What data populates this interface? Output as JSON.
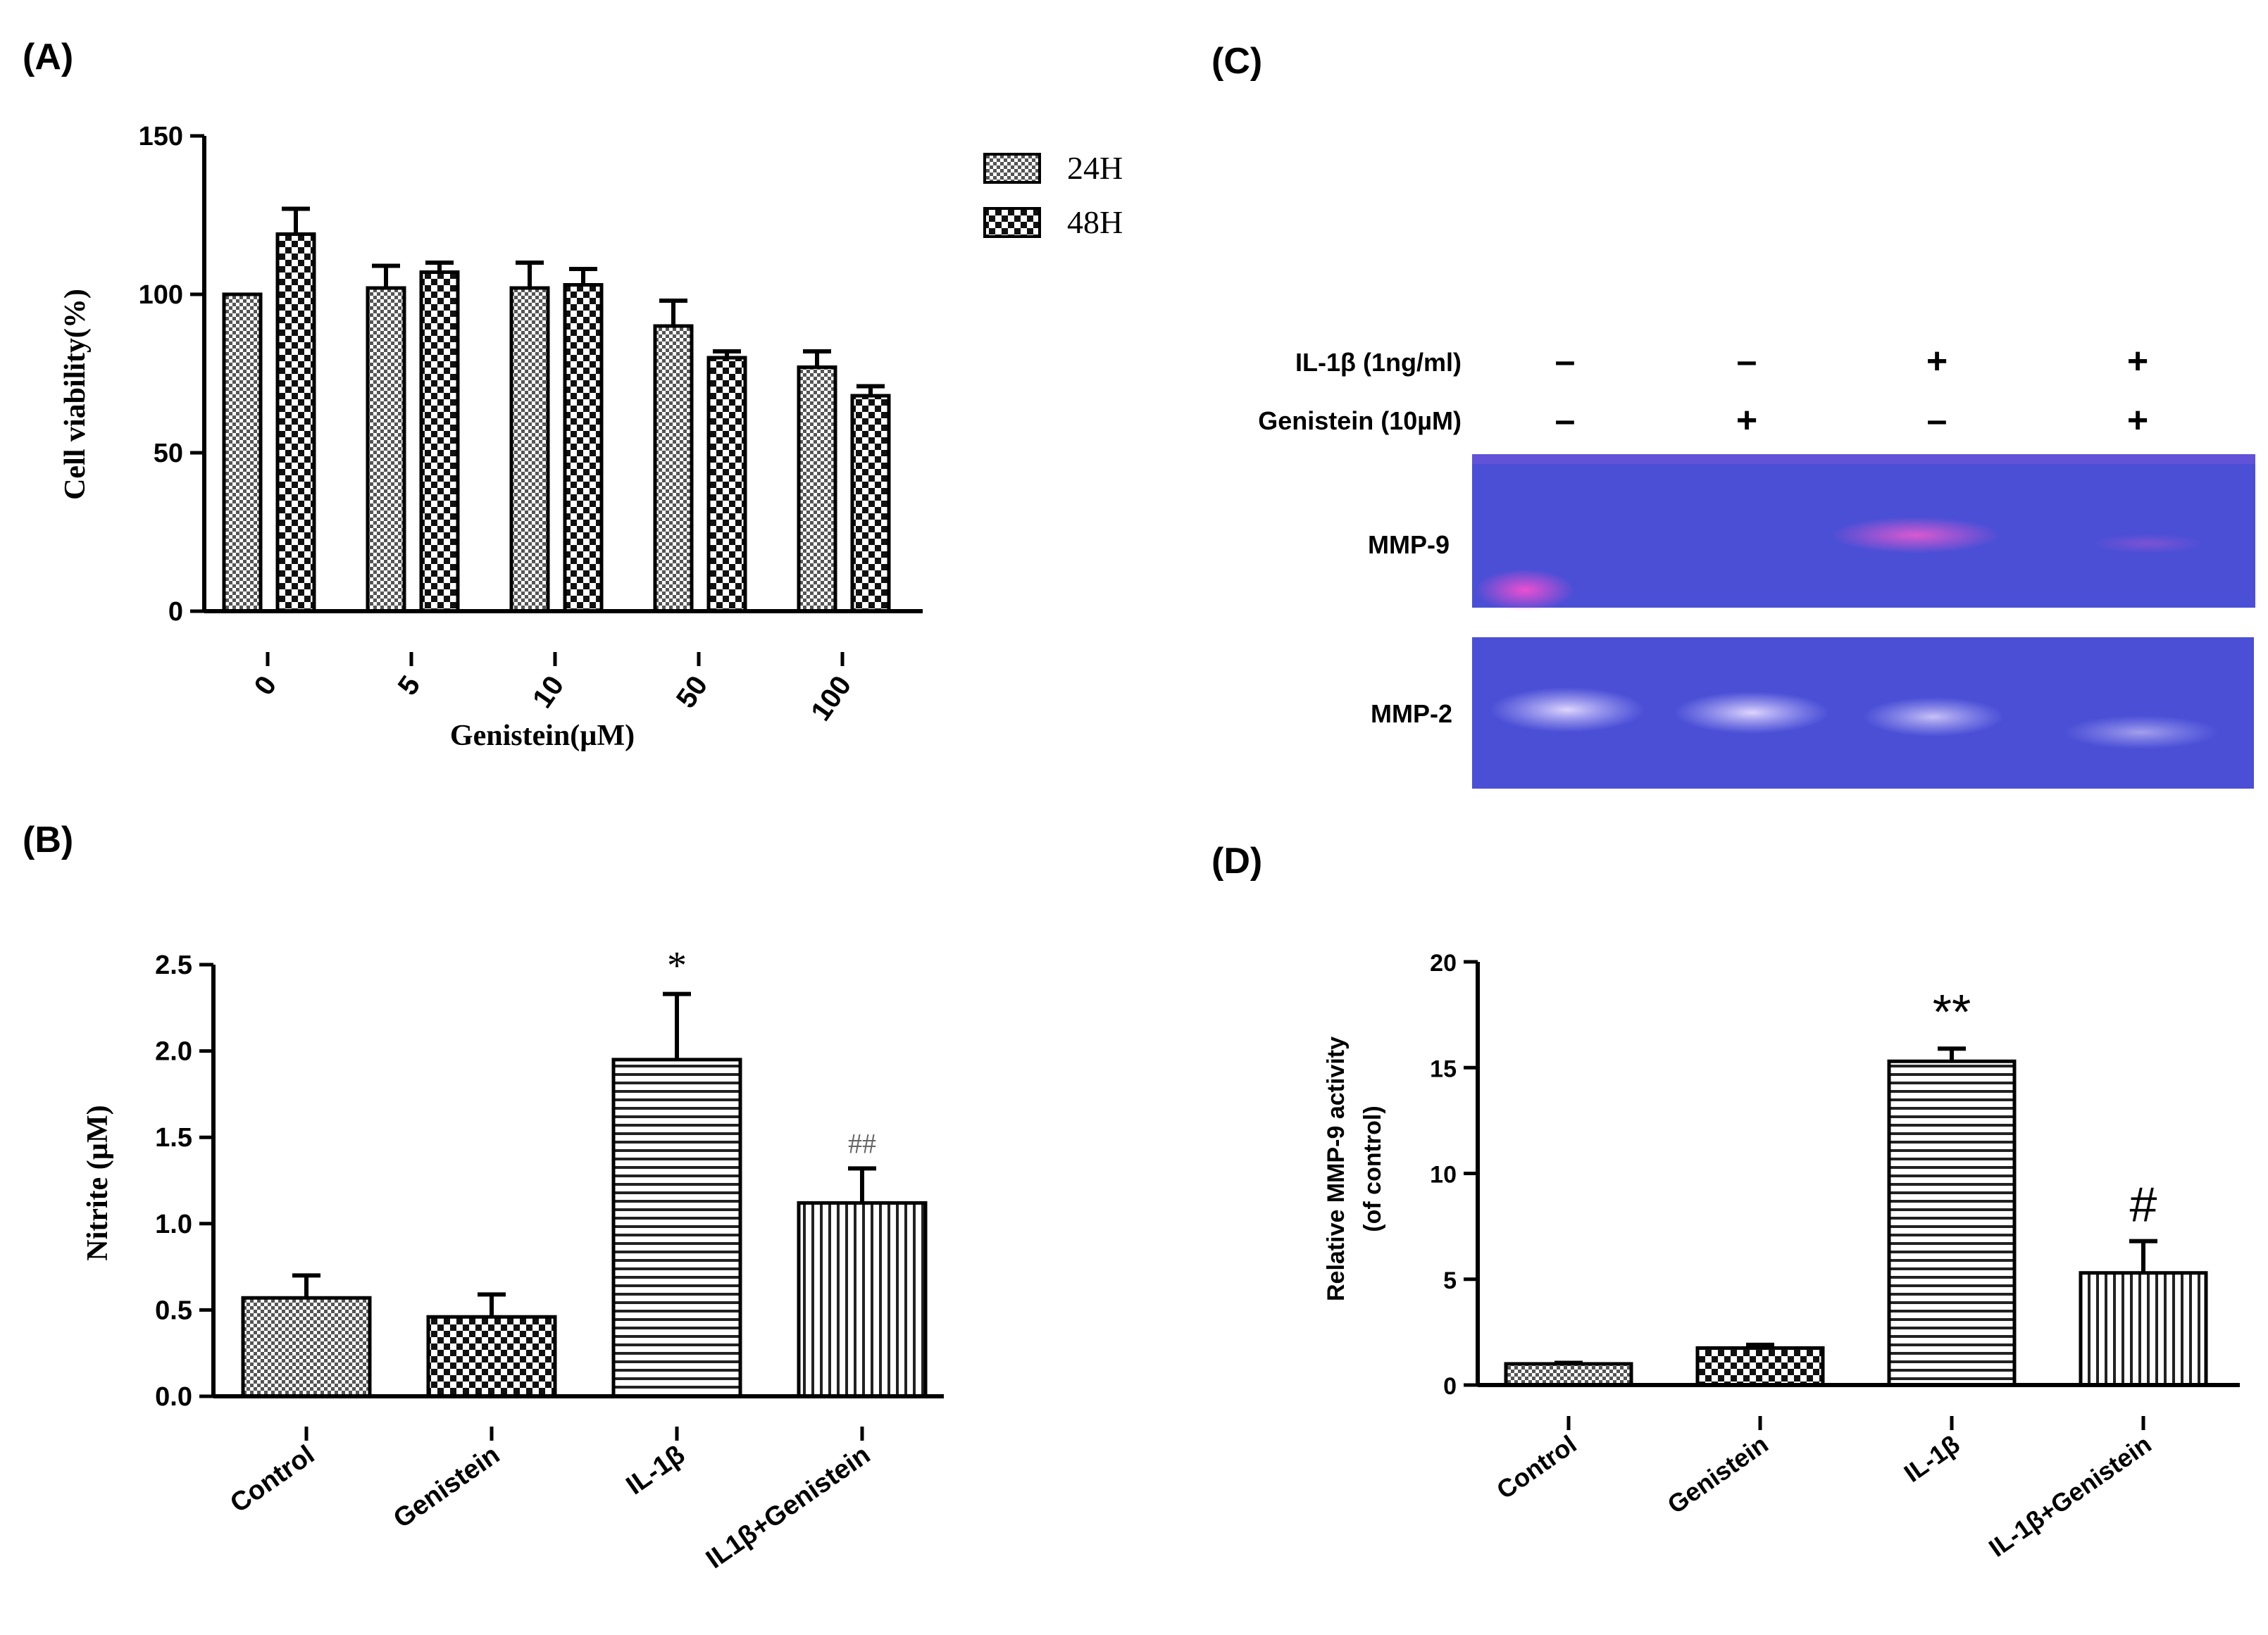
{
  "panels": {
    "A": "(A)",
    "B": "(B)",
    "C": "(C)",
    "D": "(D)"
  },
  "chart_data": [
    {
      "id": "A",
      "type": "bar",
      "title": "",
      "xlabel": "Genistein(µM)",
      "ylabel": "Cell viability(%)",
      "categories": [
        "0",
        "5",
        "10",
        "50",
        "100"
      ],
      "ylim": [
        0,
        150
      ],
      "yticks": [
        "0",
        "50",
        "100",
        "150"
      ],
      "series": [
        {
          "name": "24H",
          "values": [
            100,
            102,
            102,
            90,
            77
          ],
          "errors": [
            0,
            7,
            8,
            8,
            5
          ]
        },
        {
          "name": "48H",
          "values": [
            119,
            107,
            103,
            80,
            68
          ],
          "errors": [
            8,
            3,
            5,
            2,
            3
          ]
        }
      ],
      "legend_position": "top-right"
    },
    {
      "id": "B",
      "type": "bar",
      "title": "",
      "xlabel": "",
      "ylabel": "Nitrite (µM)",
      "categories": [
        "Control",
        "Genistein",
        "IL-1β",
        "IL1β+Genistein"
      ],
      "ylim": [
        0,
        2.5
      ],
      "yticks": [
        "0.0",
        "0.5",
        "1.0",
        "1.5",
        "2.0",
        "2.5"
      ],
      "values": [
        0.57,
        0.46,
        1.95,
        1.12
      ],
      "errors": [
        0.13,
        0.13,
        0.38,
        0.2
      ],
      "annotations": [
        "",
        "",
        "*",
        "##"
      ]
    },
    {
      "id": "D",
      "type": "bar",
      "title": "",
      "xlabel": "",
      "ylabel_line1": "Relative MMP-9 activity",
      "ylabel_line2": "(of control)",
      "categories": [
        "Control",
        "Genistein",
        "IL-1β",
        "IL-1β+Genistein"
      ],
      "ylim": [
        0,
        20
      ],
      "yticks": [
        "0",
        "5",
        "10",
        "15",
        "20"
      ],
      "values": [
        1.0,
        1.75,
        15.3,
        5.3
      ],
      "errors": [
        0.05,
        0.15,
        0.6,
        1.5
      ],
      "annotations": [
        "",
        "",
        "**",
        "#"
      ]
    }
  ],
  "gel": {
    "row1_label": "IL-1β (1ng/ml)",
    "row2_label": "Genistein (10µM)",
    "row1_signs": [
      "–",
      "–",
      "+",
      "+"
    ],
    "row2_signs": [
      "–",
      "+",
      "–",
      "+"
    ],
    "band1_label": "MMP-9",
    "band2_label": "MMP-2",
    "gel_color": "#4a4fd6"
  }
}
